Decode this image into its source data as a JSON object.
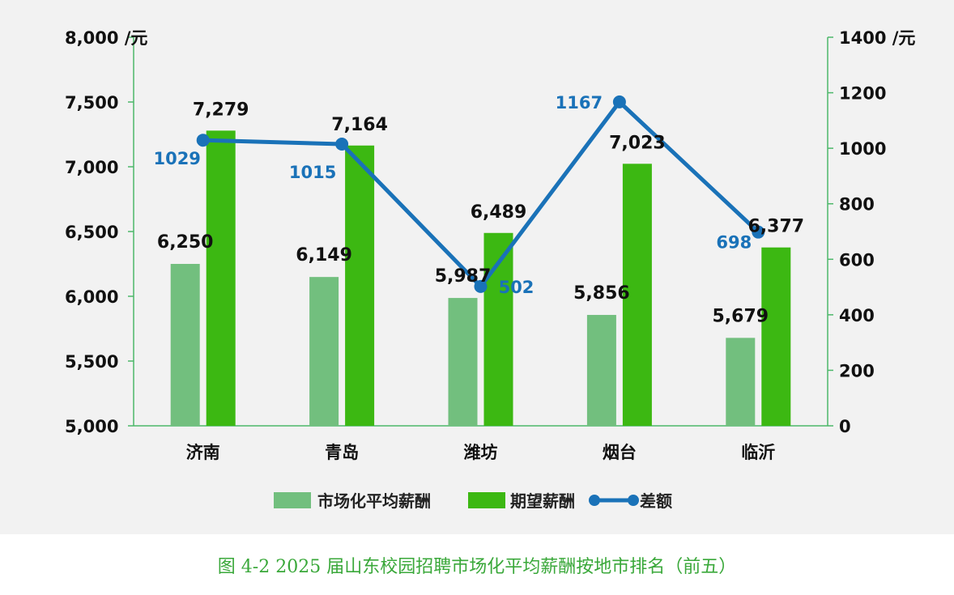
{
  "caption": "图 4-2 2025 届山东校园招聘市场化平均薪酬按地市排名（前五）",
  "colors": {
    "market_bar": "#72bf7e",
    "expected_bar": "#3cb812",
    "diff_line": "#1a72b8",
    "axis": "#4db86a"
  },
  "chart_data": {
    "type": "bar",
    "categories": [
      "济南",
      "青岛",
      "潍坊",
      "烟台",
      "临沂"
    ],
    "series": [
      {
        "name": "市场化平均薪酬",
        "type": "bar",
        "axis": "left",
        "values": [
          6250,
          6149,
          5987,
          5856,
          5679
        ],
        "labels": [
          "6,250",
          "6,149",
          "5,987",
          "5,856",
          "5,679"
        ]
      },
      {
        "name": "期望薪酬",
        "type": "bar",
        "axis": "left",
        "values": [
          7279,
          7164,
          6489,
          7023,
          6377
        ],
        "labels": [
          "7,279",
          "7,164",
          "6,489",
          "7,023",
          "6,377"
        ]
      },
      {
        "name": "差额",
        "type": "line",
        "axis": "right",
        "values": [
          1029,
          1015,
          502,
          1167,
          698
        ],
        "labels": [
          "1029",
          "1015",
          "502",
          "1167",
          "698"
        ]
      }
    ],
    "y_left": {
      "min": 5000,
      "max": 8000,
      "ticks": [
        "5,000",
        "5,500",
        "6,000",
        "6,500",
        "7,000",
        "7,500",
        "8,000 /元"
      ]
    },
    "y_right": {
      "min": 0,
      "max": 1400,
      "ticks": [
        "0",
        "200",
        "400",
        "600",
        "800",
        "1000",
        "1200",
        "1400 /元"
      ]
    },
    "legend_position": "bottom",
    "grid": false
  }
}
